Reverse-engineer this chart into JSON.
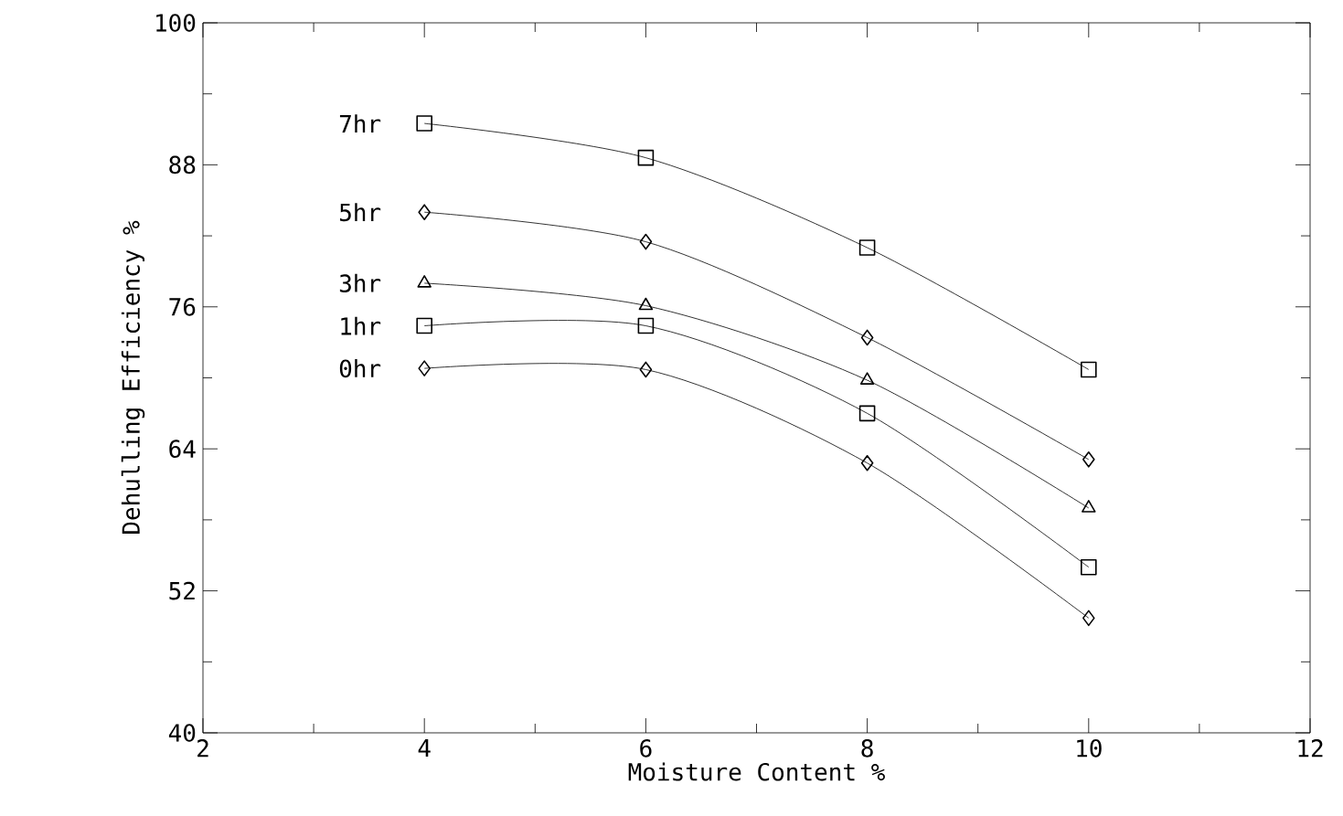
{
  "chart_data": {
    "type": "line",
    "xlabel": "Moisture Content   %",
    "ylabel": "Dehulling Efficiency   %",
    "x": [
      4,
      6,
      8,
      10
    ],
    "series": [
      {
        "name": "7hr",
        "color": "#000000",
        "marker": "square",
        "values": [
          91.5,
          88.6,
          81.0,
          70.7
        ]
      },
      {
        "name": "5hr",
        "color": "#000000",
        "marker": "diamond",
        "values": [
          84.0,
          81.5,
          73.4,
          63.1
        ]
      },
      {
        "name": "3hr",
        "color": "#000000",
        "marker": "triangle",
        "values": [
          78.0,
          76.1,
          69.8,
          59.0
        ]
      },
      {
        "name": "1hr",
        "color": "#000000",
        "marker": "square",
        "values": [
          74.4,
          74.4,
          67.0,
          54.0
        ]
      },
      {
        "name": "0hr",
        "color": "#000000",
        "marker": "diamond",
        "values": [
          70.8,
          70.7,
          62.8,
          49.7
        ]
      }
    ],
    "xlim": [
      2,
      12
    ],
    "ylim": [
      40,
      100
    ],
    "xticks": [
      2,
      {
        "value": 3,
        "label": null
      },
      4,
      {
        "value": 5,
        "label": null
      },
      6,
      {
        "value": 7,
        "label": null
      },
      8,
      {
        "value": 9,
        "label": null
      },
      10,
      {
        "value": 11,
        "label": null
      },
      12
    ],
    "yticks": [
      40,
      {
        "value": 46,
        "label": null
      },
      52,
      {
        "value": 58,
        "label": null
      },
      64,
      {
        "value": 70,
        "label": null
      },
      76,
      {
        "value": 82,
        "label": null
      },
      88,
      {
        "value": 94,
        "label": null
      },
      100
    ],
    "legend": false
  }
}
